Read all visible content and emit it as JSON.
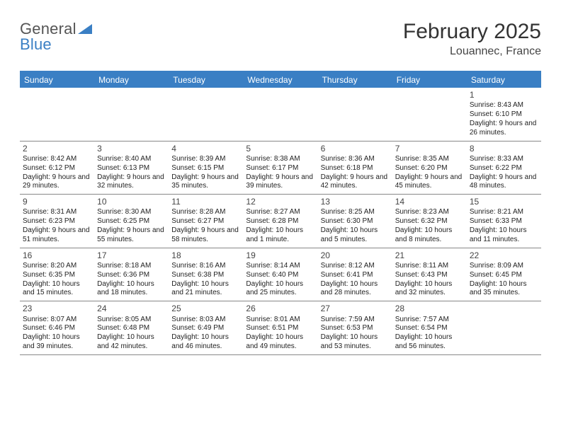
{
  "brand": {
    "part1": "General",
    "part2": "Blue"
  },
  "title": "February 2025",
  "location": "Louannec, France",
  "colors": {
    "header_bg": "#3a7fc4",
    "header_text": "#ffffff",
    "row_divider": "#888888",
    "text": "#222222",
    "title_color": "#333333"
  },
  "dayHeaders": [
    "Sunday",
    "Monday",
    "Tuesday",
    "Wednesday",
    "Thursday",
    "Friday",
    "Saturday"
  ],
  "startOffset": 6,
  "days": [
    {
      "n": 1,
      "sr": "8:43 AM",
      "ss": "6:10 PM",
      "dl": "9 hours and 26 minutes."
    },
    {
      "n": 2,
      "sr": "8:42 AM",
      "ss": "6:12 PM",
      "dl": "9 hours and 29 minutes."
    },
    {
      "n": 3,
      "sr": "8:40 AM",
      "ss": "6:13 PM",
      "dl": "9 hours and 32 minutes."
    },
    {
      "n": 4,
      "sr": "8:39 AM",
      "ss": "6:15 PM",
      "dl": "9 hours and 35 minutes."
    },
    {
      "n": 5,
      "sr": "8:38 AM",
      "ss": "6:17 PM",
      "dl": "9 hours and 39 minutes."
    },
    {
      "n": 6,
      "sr": "8:36 AM",
      "ss": "6:18 PM",
      "dl": "9 hours and 42 minutes."
    },
    {
      "n": 7,
      "sr": "8:35 AM",
      "ss": "6:20 PM",
      "dl": "9 hours and 45 minutes."
    },
    {
      "n": 8,
      "sr": "8:33 AM",
      "ss": "6:22 PM",
      "dl": "9 hours and 48 minutes."
    },
    {
      "n": 9,
      "sr": "8:31 AM",
      "ss": "6:23 PM",
      "dl": "9 hours and 51 minutes."
    },
    {
      "n": 10,
      "sr": "8:30 AM",
      "ss": "6:25 PM",
      "dl": "9 hours and 55 minutes."
    },
    {
      "n": 11,
      "sr": "8:28 AM",
      "ss": "6:27 PM",
      "dl": "9 hours and 58 minutes."
    },
    {
      "n": 12,
      "sr": "8:27 AM",
      "ss": "6:28 PM",
      "dl": "10 hours and 1 minute."
    },
    {
      "n": 13,
      "sr": "8:25 AM",
      "ss": "6:30 PM",
      "dl": "10 hours and 5 minutes."
    },
    {
      "n": 14,
      "sr": "8:23 AM",
      "ss": "6:32 PM",
      "dl": "10 hours and 8 minutes."
    },
    {
      "n": 15,
      "sr": "8:21 AM",
      "ss": "6:33 PM",
      "dl": "10 hours and 11 minutes."
    },
    {
      "n": 16,
      "sr": "8:20 AM",
      "ss": "6:35 PM",
      "dl": "10 hours and 15 minutes."
    },
    {
      "n": 17,
      "sr": "8:18 AM",
      "ss": "6:36 PM",
      "dl": "10 hours and 18 minutes."
    },
    {
      "n": 18,
      "sr": "8:16 AM",
      "ss": "6:38 PM",
      "dl": "10 hours and 21 minutes."
    },
    {
      "n": 19,
      "sr": "8:14 AM",
      "ss": "6:40 PM",
      "dl": "10 hours and 25 minutes."
    },
    {
      "n": 20,
      "sr": "8:12 AM",
      "ss": "6:41 PM",
      "dl": "10 hours and 28 minutes."
    },
    {
      "n": 21,
      "sr": "8:11 AM",
      "ss": "6:43 PM",
      "dl": "10 hours and 32 minutes."
    },
    {
      "n": 22,
      "sr": "8:09 AM",
      "ss": "6:45 PM",
      "dl": "10 hours and 35 minutes."
    },
    {
      "n": 23,
      "sr": "8:07 AM",
      "ss": "6:46 PM",
      "dl": "10 hours and 39 minutes."
    },
    {
      "n": 24,
      "sr": "8:05 AM",
      "ss": "6:48 PM",
      "dl": "10 hours and 42 minutes."
    },
    {
      "n": 25,
      "sr": "8:03 AM",
      "ss": "6:49 PM",
      "dl": "10 hours and 46 minutes."
    },
    {
      "n": 26,
      "sr": "8:01 AM",
      "ss": "6:51 PM",
      "dl": "10 hours and 49 minutes."
    },
    {
      "n": 27,
      "sr": "7:59 AM",
      "ss": "6:53 PM",
      "dl": "10 hours and 53 minutes."
    },
    {
      "n": 28,
      "sr": "7:57 AM",
      "ss": "6:54 PM",
      "dl": "10 hours and 56 minutes."
    }
  ],
  "labels": {
    "sunrise": "Sunrise:",
    "sunset": "Sunset:",
    "daylight": "Daylight:"
  }
}
